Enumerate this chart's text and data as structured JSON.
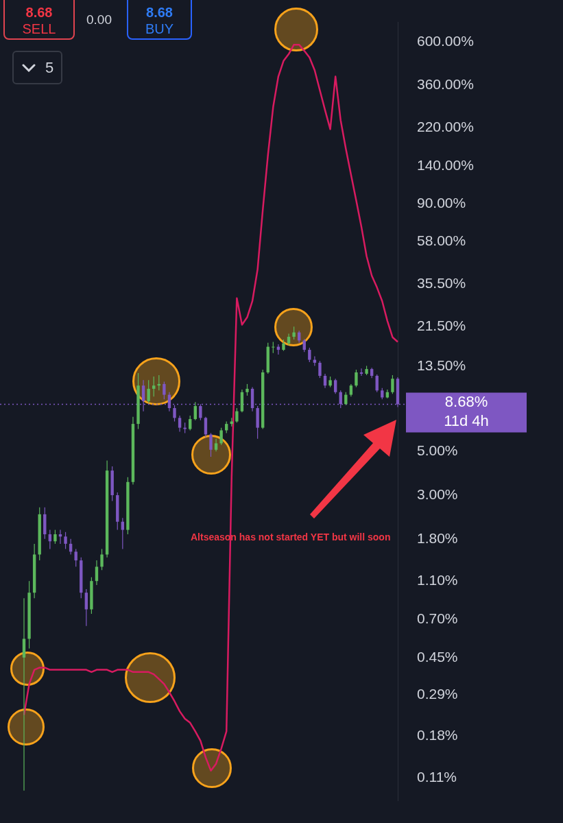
{
  "chart_data": {
    "type": "candlestick",
    "log": true,
    "grid": false,
    "tick_labels": "y",
    "categories": [
      null,
      null,
      null,
      null,
      null,
      null,
      null,
      null,
      null,
      null,
      null,
      null,
      null,
      null,
      null,
      null,
      null,
      null,
      null,
      null,
      null,
      null,
      null,
      null,
      null,
      null,
      null,
      null,
      null,
      null,
      null,
      null,
      null,
      null,
      null,
      null,
      null,
      null,
      null,
      null,
      null,
      null,
      null,
      null,
      null,
      null,
      null,
      null,
      null,
      null,
      null,
      null,
      null,
      null,
      null,
      null,
      null,
      null,
      null,
      null,
      null,
      null,
      null,
      null,
      null,
      null,
      null,
      null,
      null,
      null,
      null,
      null,
      null
    ],
    "ylim": [
      0.0845,
      753
    ],
    "yticks": [
      {
        "value": 0.11,
        "label": "0.11%"
      },
      {
        "value": 0.18,
        "label": "0.18%"
      },
      {
        "value": 0.29,
        "label": "0.29%"
      },
      {
        "value": 0.45,
        "label": "0.45%"
      },
      {
        "value": 0.7,
        "label": "0.70%"
      },
      {
        "value": 1.1,
        "label": "1.10%"
      },
      {
        "value": 1.8,
        "label": "1.80%"
      },
      {
        "value": 3,
        "label": "3.00%"
      },
      {
        "value": 5,
        "label": "5.00%"
      },
      {
        "value": 13.5,
        "label": "13.50%"
      },
      {
        "value": 21.5,
        "label": "21.50%"
      },
      {
        "value": 35.5,
        "label": "35.50%"
      },
      {
        "value": 58,
        "label": "58.00%"
      },
      {
        "value": 90,
        "label": "90.00%"
      },
      {
        "value": 140,
        "label": "140.00%"
      },
      {
        "value": 220,
        "label": "220.00%"
      },
      {
        "value": 360,
        "label": "360.00%"
      },
      {
        "value": 600,
        "label": "600.00%"
      }
    ],
    "ref_lines": [
      {
        "axis": "y",
        "value": 8.68,
        "label": "8.68%",
        "color": "#7e57c2",
        "line_style": "dotted"
      }
    ],
    "annotations": [
      "8.68",
      "SELL",
      "0.00",
      "8.68",
      "BUY",
      "5",
      "11d 4h",
      "Altseason has not started YET but will soon"
    ],
    "series": [
      {
        "type": "line",
        "color": "#d81b60",
        "values": [
          0.23,
          0.33,
          0.39,
          0.4,
          0.4,
          0.39,
          0.39,
          0.39,
          0.39,
          0.39,
          0.39,
          0.39,
          0.39,
          0.38,
          0.39,
          0.39,
          0.39,
          0.38,
          0.39,
          0.39,
          0.39,
          0.38,
          0.38,
          0.38,
          0.38,
          0.37,
          0.35,
          0.33,
          0.3,
          0.27,
          0.24,
          0.22,
          0.21,
          0.19,
          0.17,
          0.14,
          0.12,
          0.13,
          0.155,
          0.19,
          3.7,
          30,
          22,
          24,
          29,
          42,
          84,
          160,
          280,
          400,
          480,
          520,
          580,
          580,
          540,
          500,
          430,
          340,
          270,
          216,
          400,
          240,
          172,
          127,
          94,
          69,
          49,
          39,
          34,
          29,
          23,
          19,
          18
        ]
      },
      {
        "type": "candlestick",
        "ohlc": [
          [
            0.45,
            0.9,
            0.095,
            0.56
          ],
          [
            0.56,
            1.1,
            0.5,
            0.96
          ],
          [
            0.96,
            1.7,
            0.9,
            1.5
          ],
          [
            1.5,
            2.6,
            1.4,
            2.4
          ],
          [
            2.4,
            2.6,
            1.8,
            1.9
          ],
          [
            1.9,
            2.0,
            1.6,
            1.75
          ],
          [
            1.75,
            2.0,
            1.7,
            1.9
          ],
          [
            1.9,
            2.0,
            1.7,
            1.85
          ],
          [
            1.85,
            1.95,
            1.6,
            1.7
          ],
          [
            1.7,
            1.8,
            1.5,
            1.55
          ],
          [
            1.55,
            1.6,
            1.3,
            1.4
          ],
          [
            1.4,
            1.45,
            0.9,
            0.96
          ],
          [
            0.96,
            1.0,
            0.65,
            0.79
          ],
          [
            0.79,
            1.15,
            0.75,
            1.1
          ],
          [
            1.1,
            1.4,
            1.05,
            1.3
          ],
          [
            1.3,
            1.6,
            1.25,
            1.5
          ],
          [
            1.5,
            4.5,
            1.45,
            4.0
          ],
          [
            4.0,
            4.2,
            2.8,
            3.0
          ],
          [
            3.0,
            3.1,
            2.0,
            2.2
          ],
          [
            2.2,
            2.3,
            1.6,
            2.0
          ],
          [
            2.0,
            3.7,
            1.9,
            3.5
          ],
          [
            3.5,
            7.5,
            3.4,
            6.9
          ],
          [
            6.9,
            12.5,
            6.5,
            10.8
          ],
          [
            10.8,
            11.5,
            8.0,
            9.0
          ],
          [
            9.0,
            11.5,
            8.8,
            10.4
          ],
          [
            10.4,
            12,
            9.5,
            10.8
          ],
          [
            10.8,
            12.2,
            10.2,
            11
          ],
          [
            11,
            11.3,
            9.2,
            9.7
          ],
          [
            9.7,
            10,
            8.0,
            8.3
          ],
          [
            8.3,
            8.6,
            7.1,
            7.4
          ],
          [
            7.4,
            7.6,
            6.3,
            6.6
          ],
          [
            6.6,
            7.0,
            6.2,
            6.5
          ],
          [
            6.5,
            7.6,
            6.4,
            7.3
          ],
          [
            7.3,
            8.9,
            7.2,
            8.5
          ],
          [
            8.5,
            8.7,
            7.2,
            7.4
          ],
          [
            7.4,
            7.5,
            5.9,
            6.1
          ],
          [
            6.1,
            6.2,
            4.7,
            5.1
          ],
          [
            5.1,
            5.8,
            5.0,
            5.5
          ],
          [
            5.5,
            6.6,
            5.4,
            6.4
          ],
          [
            6.4,
            7.1,
            6.2,
            6.9
          ],
          [
            6.9,
            7.4,
            6.7,
            7.1
          ],
          [
            7.1,
            8.3,
            7.0,
            8.0
          ],
          [
            8.0,
            10.3,
            7.9,
            10.0
          ],
          [
            10.0,
            11.0,
            9.6,
            10.4
          ],
          [
            10.4,
            10.6,
            8.0,
            8.3
          ],
          [
            8.3,
            8.5,
            5.8,
            6.6
          ],
          [
            6.6,
            13,
            6.5,
            12.6
          ],
          [
            12.6,
            17.8,
            12.4,
            17
          ],
          [
            17,
            18,
            15.8,
            17
          ],
          [
            17,
            17.5,
            15.5,
            16.4
          ],
          [
            16.4,
            18.5,
            16.2,
            17.7
          ],
          [
            17.7,
            19.8,
            17.3,
            19.1
          ],
          [
            19.1,
            21.5,
            18.5,
            20.1
          ],
          [
            20.1,
            20.5,
            17.8,
            18.3
          ],
          [
            18.3,
            18.6,
            16,
            16.4
          ],
          [
            16.4,
            16.8,
            14.2,
            14.6
          ],
          [
            14.6,
            15.2,
            13.6,
            14.1
          ],
          [
            14.1,
            14.4,
            11.8,
            12.1
          ],
          [
            12.1,
            12.4,
            10.5,
            10.8
          ],
          [
            10.8,
            12,
            10.6,
            11.5
          ],
          [
            11.5,
            11.7,
            9.8,
            10.0
          ],
          [
            10.0,
            10.2,
            8.3,
            8.7
          ],
          [
            8.7,
            10,
            8.6,
            9.7
          ],
          [
            9.7,
            11,
            9.5,
            10.8
          ],
          [
            10.8,
            13,
            10.6,
            12.6
          ],
          [
            12.6,
            13.2,
            12.1,
            12.4
          ],
          [
            12.4,
            13.6,
            12.2,
            13.1
          ],
          [
            13.1,
            13.3,
            11.8,
            12.1
          ],
          [
            12.1,
            12.3,
            10,
            10.2
          ],
          [
            10.2,
            10.5,
            9.2,
            9.4
          ],
          [
            9.4,
            10.3,
            9.3,
            10.0
          ],
          [
            10.0,
            12.2,
            9.8,
            11.7
          ],
          [
            11.7,
            11.9,
            8.4,
            8.68
          ]
        ],
        "colors": [
          "#5cb85c",
          "#5cb85c",
          "#5cb85c",
          "#5cb85c",
          "#7e57c2",
          "#7e57c2",
          "#5cb85c",
          "#7e57c2",
          "#7e57c2",
          "#7e57c2",
          "#7e57c2",
          "#7e57c2",
          "#7e57c2",
          "#5cb85c",
          "#5cb85c",
          "#5cb85c",
          "#5cb85c",
          "#7e57c2",
          "#7e57c2",
          "#7e57c2",
          "#5cb85c",
          "#5cb85c",
          "#5cb85c",
          "#7e57c2",
          "#5cb85c",
          "#5cb85c",
          "#5cb85c",
          "#7e57c2",
          "#7e57c2",
          "#7e57c2",
          "#7e57c2",
          "#7e57c2",
          "#5cb85c",
          "#5cb85c",
          "#7e57c2",
          "#7e57c2",
          "#7e57c2",
          "#5cb85c",
          "#5cb85c",
          "#5cb85c",
          "#5cb85c",
          "#5cb85c",
          "#5cb85c",
          "#5cb85c",
          "#7e57c2",
          "#7e57c2",
          "#5cb85c",
          "#5cb85c",
          "#5cb85c",
          "#7e57c2",
          "#5cb85c",
          "#5cb85c",
          "#5cb85c",
          "#7e57c2",
          "#7e57c2",
          "#7e57c2",
          "#7e57c2",
          "#7e57c2",
          "#7e57c2",
          "#5cb85c",
          "#7e57c2",
          "#7e57c2",
          "#5cb85c",
          "#5cb85c",
          "#5cb85c",
          "#7e57c2",
          "#5cb85c",
          "#7e57c2",
          "#7e57c2",
          "#7e57c2",
          "#5cb85c",
          "#5cb85c",
          "#7e57c2"
        ]
      }
    ]
  }
}
